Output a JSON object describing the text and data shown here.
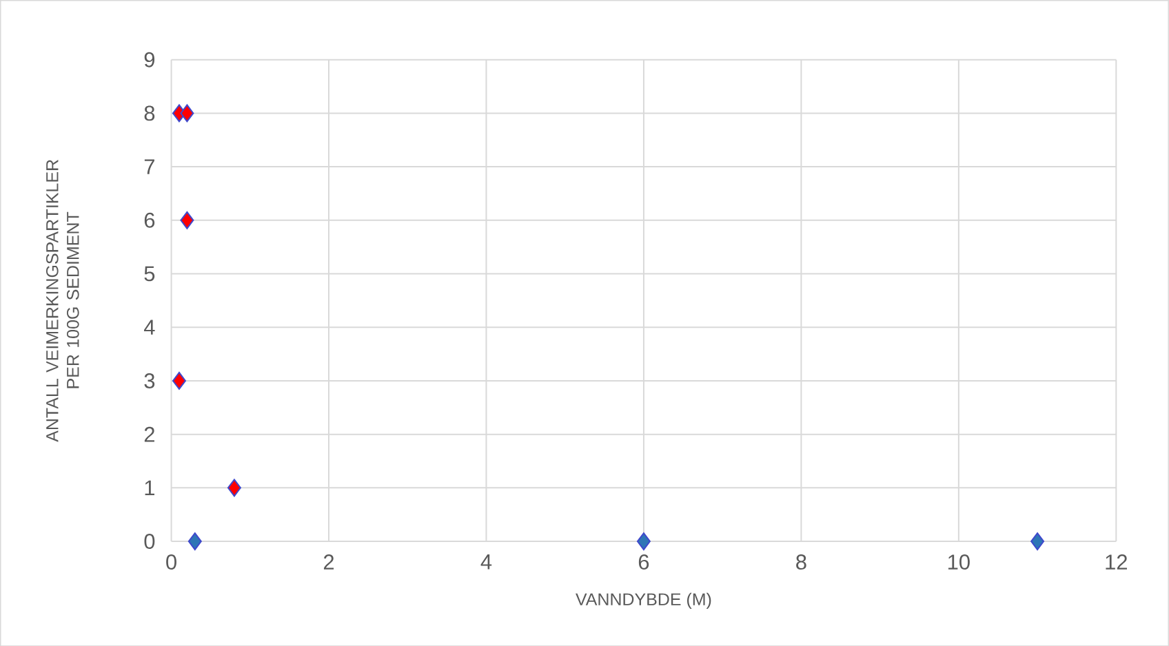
{
  "chart_data": {
    "type": "scatter",
    "xlabel": "VANNDYBDE (M)",
    "ylabel": "ANTALL VEIMERKINGSPARTIKLER PER 100G SEDIMENT",
    "series": [
      {
        "color": "#ff0000",
        "x": [
          0.1,
          0.2,
          0.2,
          0.1,
          0.8
        ],
        "values": [
          8,
          8,
          6,
          3,
          1
        ]
      },
      {
        "color": "#2e75b6",
        "x": [
          0.3,
          6,
          11
        ],
        "values": [
          0,
          0,
          0
        ]
      }
    ],
    "xlim": [
      0,
      12
    ],
    "ylim": [
      0,
      9
    ],
    "xticks": [
      0,
      2,
      4,
      6,
      8,
      10,
      12
    ],
    "yticks": [
      0,
      1,
      2,
      3,
      4,
      5,
      6,
      7,
      8,
      9
    ],
    "grid": true,
    "marker": "diamond"
  }
}
